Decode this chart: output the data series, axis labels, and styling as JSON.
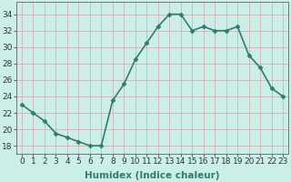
{
  "x": [
    0,
    1,
    2,
    3,
    4,
    5,
    6,
    7,
    8,
    9,
    10,
    11,
    12,
    13,
    14,
    15,
    16,
    17,
    18,
    19,
    20,
    21,
    22,
    23
  ],
  "y": [
    23,
    22,
    21,
    19.5,
    19,
    18.5,
    18,
    18,
    23.5,
    25.5,
    28.5,
    30.5,
    32.5,
    34,
    34,
    32,
    32.5,
    32,
    32,
    32.5,
    29,
    27.5,
    25,
    24
  ],
  "line_color": "#2e7d6e",
  "marker": "D",
  "marker_size": 2.5,
  "bg_color": "#cceee8",
  "grid_color": "#aacccc",
  "xlabel": "Humidex (Indice chaleur)",
  "ylabel_ticks": [
    18,
    20,
    22,
    24,
    26,
    28,
    30,
    32,
    34
  ],
  "xlim": [
    -0.5,
    23.5
  ],
  "ylim": [
    17,
    35.5
  ],
  "xticks": [
    0,
    1,
    2,
    3,
    4,
    5,
    6,
    7,
    8,
    9,
    10,
    11,
    12,
    13,
    14,
    15,
    16,
    17,
    18,
    19,
    20,
    21,
    22,
    23
  ],
  "xlabel_fontsize": 7.5,
  "tick_fontsize": 6.5,
  "line_width": 1.2
}
